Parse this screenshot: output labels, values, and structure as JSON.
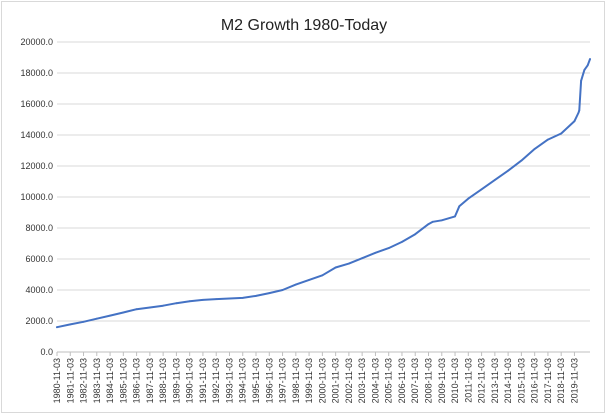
{
  "chart_data": {
    "type": "line",
    "title": "M2 Growth 1980-Today",
    "xlabel": "",
    "ylabel": "",
    "ylim": [
      0,
      20000
    ],
    "y_ticks": [
      "0.0",
      "2000.0",
      "4000.0",
      "6000.0",
      "8000.0",
      "10000.0",
      "12000.0",
      "14000.0",
      "16000.0",
      "18000.0",
      "20000.0"
    ],
    "x_tick_labels": [
      "1980-11-03",
      "1981-11-03",
      "1982-11-03",
      "1983-11-03",
      "1984-11-03",
      "1985-11-03",
      "1986-11-03",
      "1987-11-03",
      "1988-11-03",
      "1989-11-03",
      "1990-11-03",
      "1991-11-03",
      "1992-11-03",
      "1993-11-03",
      "1994-11-03",
      "1995-11-03",
      "1996-11-03",
      "1997-11-03",
      "1998-11-03",
      "1999-11-03",
      "2000-11-03",
      "2001-11-03",
      "2002-11-03",
      "2003-11-03",
      "2004-11-03",
      "2005-11-03",
      "2006-11-03",
      "2007-11-03",
      "2008-11-03",
      "2009-11-03",
      "2010-11-03",
      "2011-11-03",
      "2012-11-03",
      "2013-11-03",
      "2014-11-03",
      "2015-11-03",
      "2016-11-03",
      "2017-11-03",
      "2018-11-03",
      "2019-11-03"
    ],
    "grid": true,
    "legend": "none",
    "series": [
      {
        "color": "#4472c4",
        "x": [
          "1980-11-03",
          "1981-11-03",
          "1982-11-03",
          "1983-11-03",
          "1984-11-03",
          "1985-11-03",
          "1986-11-03",
          "1987-11-03",
          "1988-11-03",
          "1989-11-03",
          "1990-11-03",
          "1991-11-03",
          "1992-11-03",
          "1993-11-03",
          "1994-11-03",
          "1995-11-03",
          "1996-11-03",
          "1997-11-03",
          "1998-11-03",
          "1999-11-03",
          "2000-11-03",
          "2001-11-03",
          "2002-11-03",
          "2003-11-03",
          "2004-11-03",
          "2005-11-03",
          "2006-11-03",
          "2007-11-03",
          "2008-11-03",
          "2009-03-01",
          "2009-11-03",
          "2010-11-03",
          "2011-03-01",
          "2011-11-03",
          "2012-11-03",
          "2013-11-03",
          "2014-11-03",
          "2015-11-03",
          "2016-11-03",
          "2017-11-03",
          "2018-11-03",
          "2019-11-03",
          "2020-02-24",
          "2020-03-16",
          "2020-05-04",
          "2020-08-03",
          "2020-11-02",
          "2021-01-04"
        ],
        "values": [
          1600,
          1780,
          1950,
          2150,
          2350,
          2550,
          2760,
          2870,
          2990,
          3150,
          3280,
          3360,
          3410,
          3450,
          3490,
          3620,
          3800,
          4000,
          4350,
          4650,
          4950,
          5450,
          5700,
          6050,
          6400,
          6700,
          7100,
          7600,
          8250,
          8400,
          8500,
          8750,
          9400,
          9900,
          10500,
          11100,
          11700,
          12350,
          13100,
          13700,
          14100,
          14900,
          15450,
          15600,
          17500,
          18200,
          18500,
          18900
        ]
      }
    ]
  }
}
